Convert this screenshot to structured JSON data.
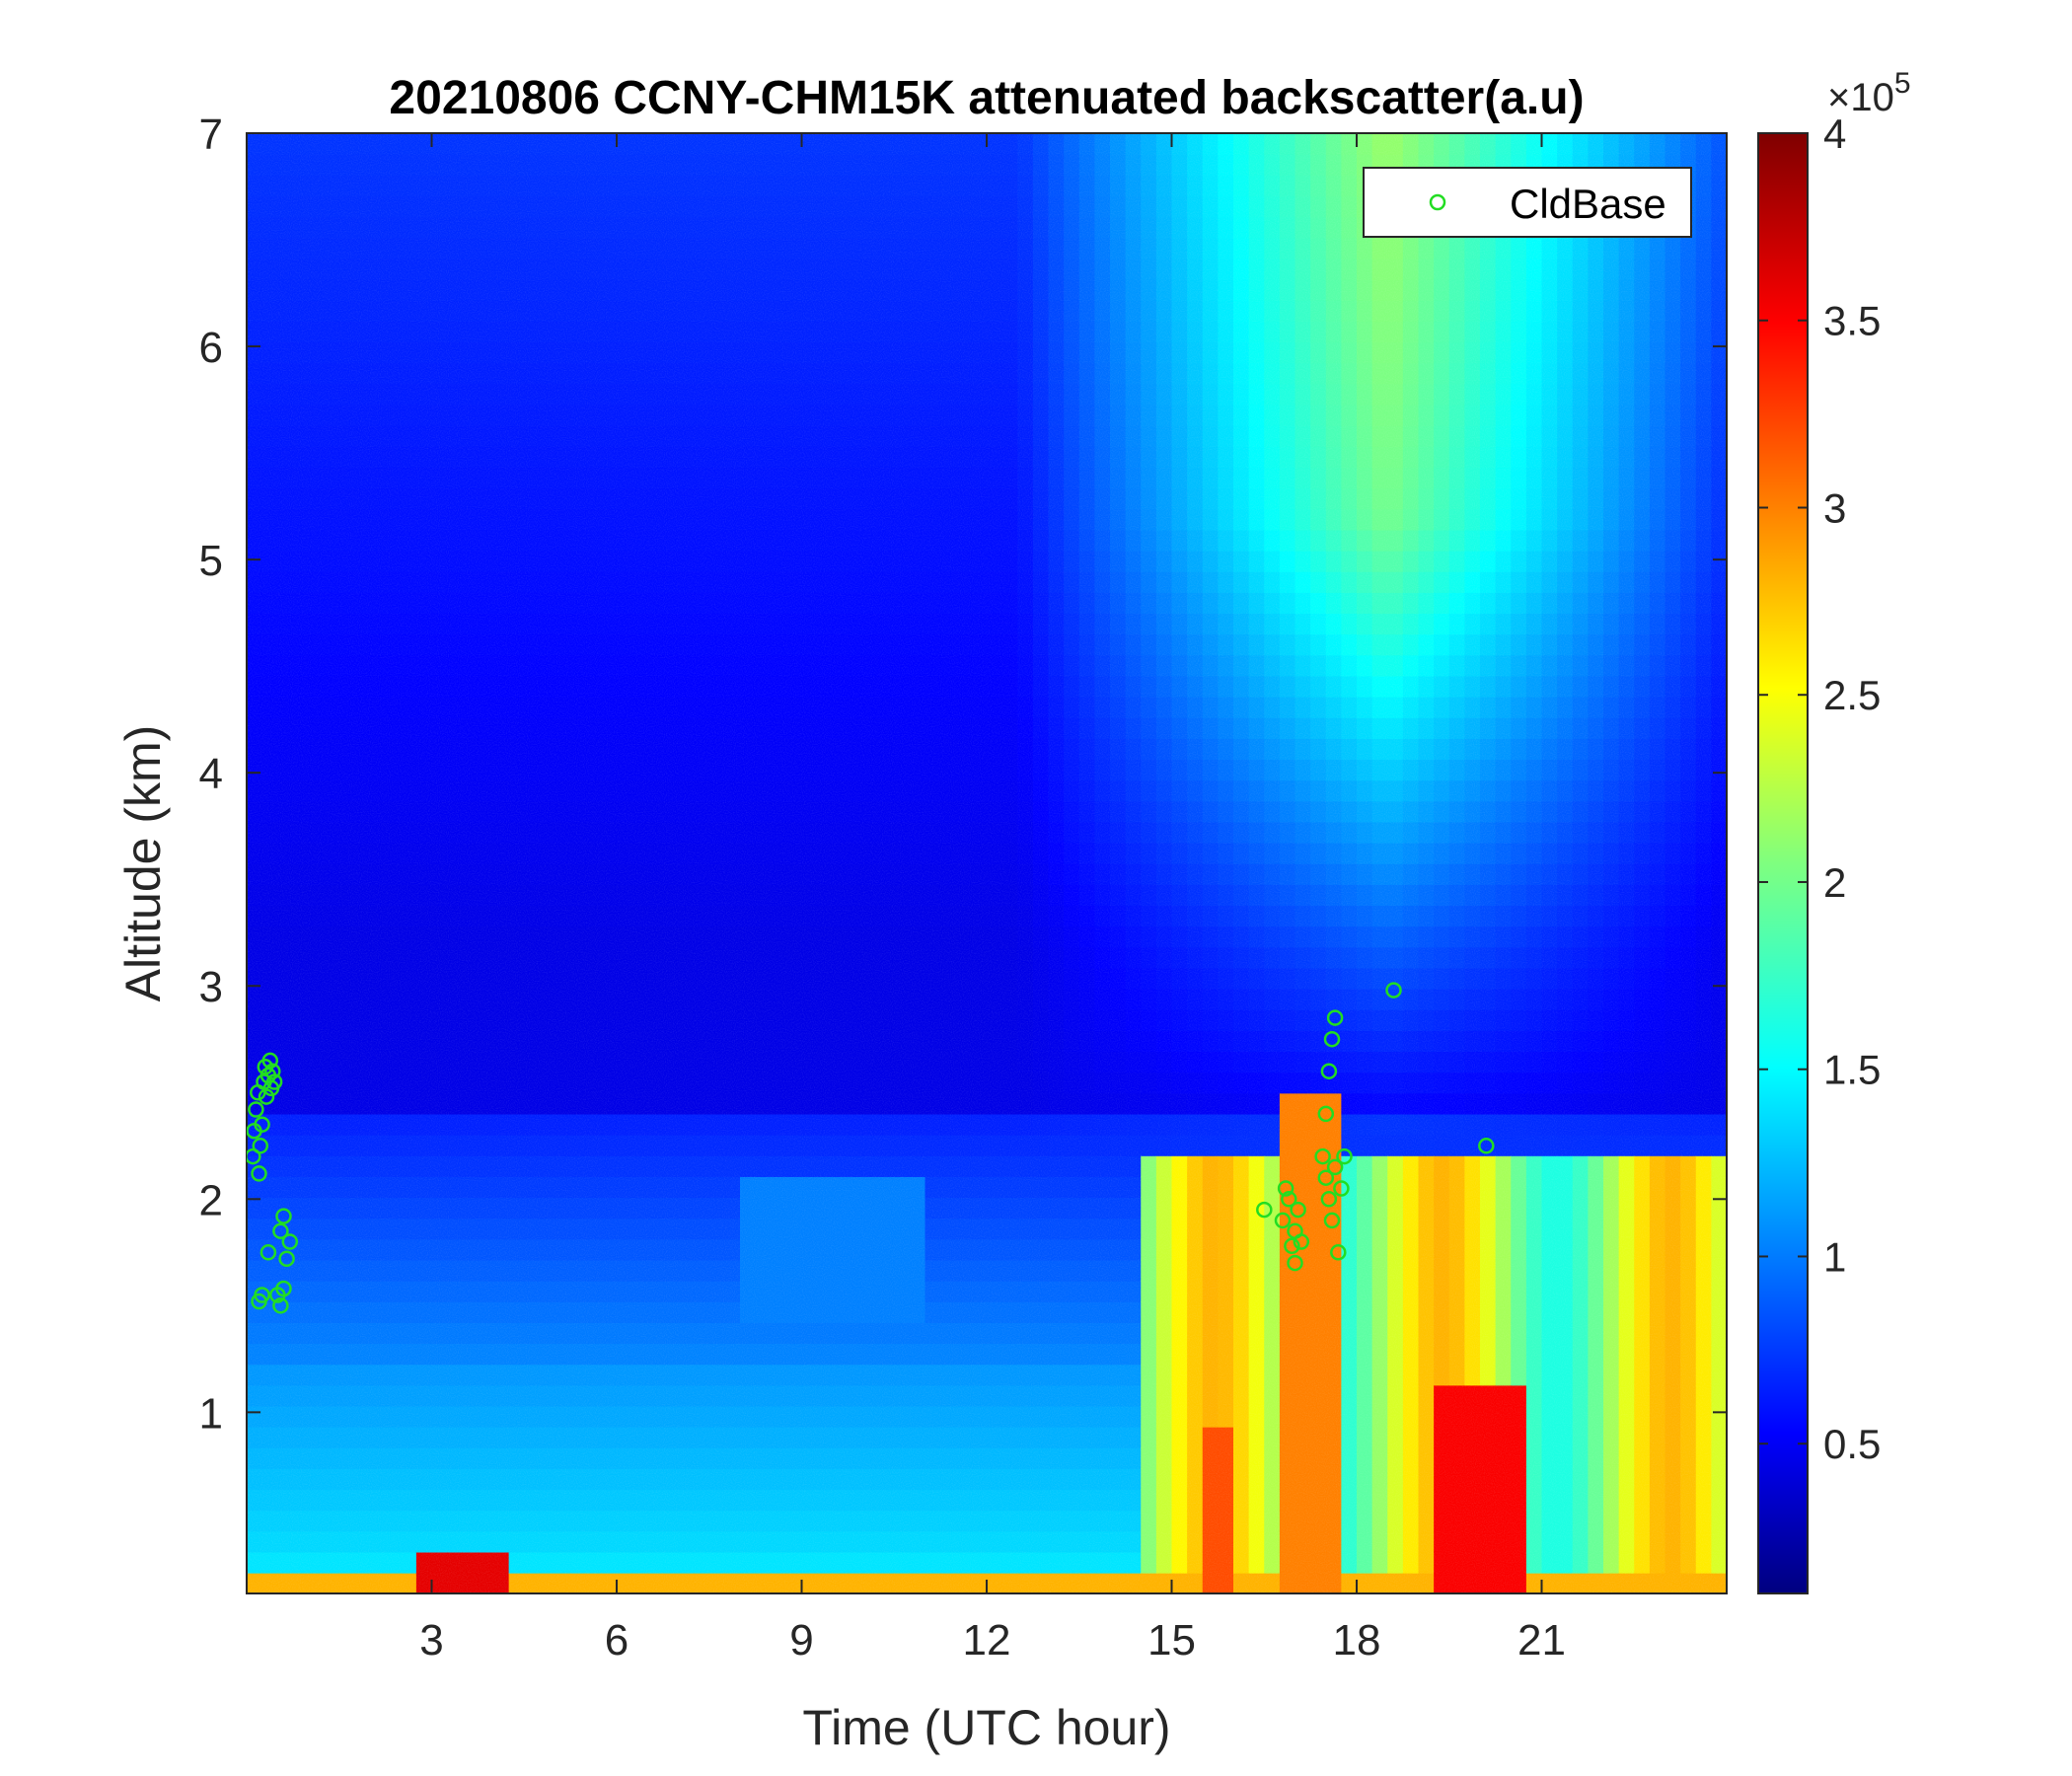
{
  "chart_data": {
    "type": "heatmap",
    "title": "20210806 CCNY-CHM15K attenuated backscatter(a.u)",
    "xlabel": "Time (UTC hour)",
    "ylabel": "Altitude (km)",
    "xlim": [
      0,
      24
    ],
    "ylim": [
      0.15,
      7
    ],
    "x_ticks": [
      3,
      6,
      9,
      12,
      15,
      18,
      21
    ],
    "x_tick_labels": [
      "3",
      "6",
      "9",
      "12",
      "15",
      "18",
      "21"
    ],
    "y_ticks": [
      1,
      2,
      3,
      4,
      5,
      6,
      7
    ],
    "y_tick_labels": [
      "1",
      "2",
      "3",
      "4",
      "5",
      "6",
      "7"
    ],
    "colormap": "jet",
    "colorbar": {
      "range": [
        0.1,
        4
      ],
      "ticks": [
        0.5,
        1,
        1.5,
        2,
        2.5,
        3,
        3.5,
        4
      ],
      "tick_labels": [
        "0.5",
        "1",
        "1.5",
        "2",
        "2.5",
        "3",
        "3.5",
        "4"
      ],
      "multiplier": "×10",
      "multiplier_exponent": "5"
    },
    "legend": {
      "position": "top-right",
      "entries": [
        {
          "name": "CldBase",
          "marker": "circle",
          "color": "#22dd22"
        }
      ]
    },
    "series": [
      {
        "name": "CldBase",
        "type": "scatter",
        "points": [
          [
            0.1,
            2.2
          ],
          [
            0.12,
            2.32
          ],
          [
            0.15,
            2.42
          ],
          [
            0.18,
            2.5
          ],
          [
            0.2,
            2.12
          ],
          [
            0.22,
            2.25
          ],
          [
            0.25,
            2.35
          ],
          [
            0.28,
            2.55
          ],
          [
            0.3,
            2.62
          ],
          [
            0.32,
            2.48
          ],
          [
            0.35,
            2.58
          ],
          [
            0.38,
            2.65
          ],
          [
            0.4,
            2.52
          ],
          [
            0.42,
            2.6
          ],
          [
            0.45,
            2.55
          ],
          [
            0.2,
            1.52
          ],
          [
            0.25,
            1.55
          ],
          [
            0.55,
            1.5
          ],
          [
            0.6,
            1.58
          ],
          [
            0.5,
            1.55
          ],
          [
            0.35,
            1.75
          ],
          [
            0.55,
            1.85
          ],
          [
            0.6,
            1.92
          ],
          [
            0.65,
            1.72
          ],
          [
            0.7,
            1.8
          ],
          [
            16.5,
            1.95
          ],
          [
            16.8,
            1.9
          ],
          [
            16.9,
            2.0
          ],
          [
            17.0,
            1.85
          ],
          [
            16.95,
            1.78
          ],
          [
            17.0,
            1.7
          ],
          [
            17.1,
            1.8
          ],
          [
            16.85,
            2.05
          ],
          [
            17.05,
            1.95
          ],
          [
            17.45,
            2.2
          ],
          [
            17.5,
            2.4
          ],
          [
            17.55,
            2.6
          ],
          [
            17.6,
            2.75
          ],
          [
            17.65,
            2.85
          ],
          [
            17.5,
            2.1
          ],
          [
            17.55,
            2.0
          ],
          [
            17.6,
            1.9
          ],
          [
            17.7,
            1.75
          ],
          [
            17.65,
            2.15
          ],
          [
            17.75,
            2.05
          ],
          [
            17.8,
            2.2
          ],
          [
            18.6,
            2.98
          ],
          [
            20.1,
            2.25
          ]
        ]
      }
    ]
  }
}
